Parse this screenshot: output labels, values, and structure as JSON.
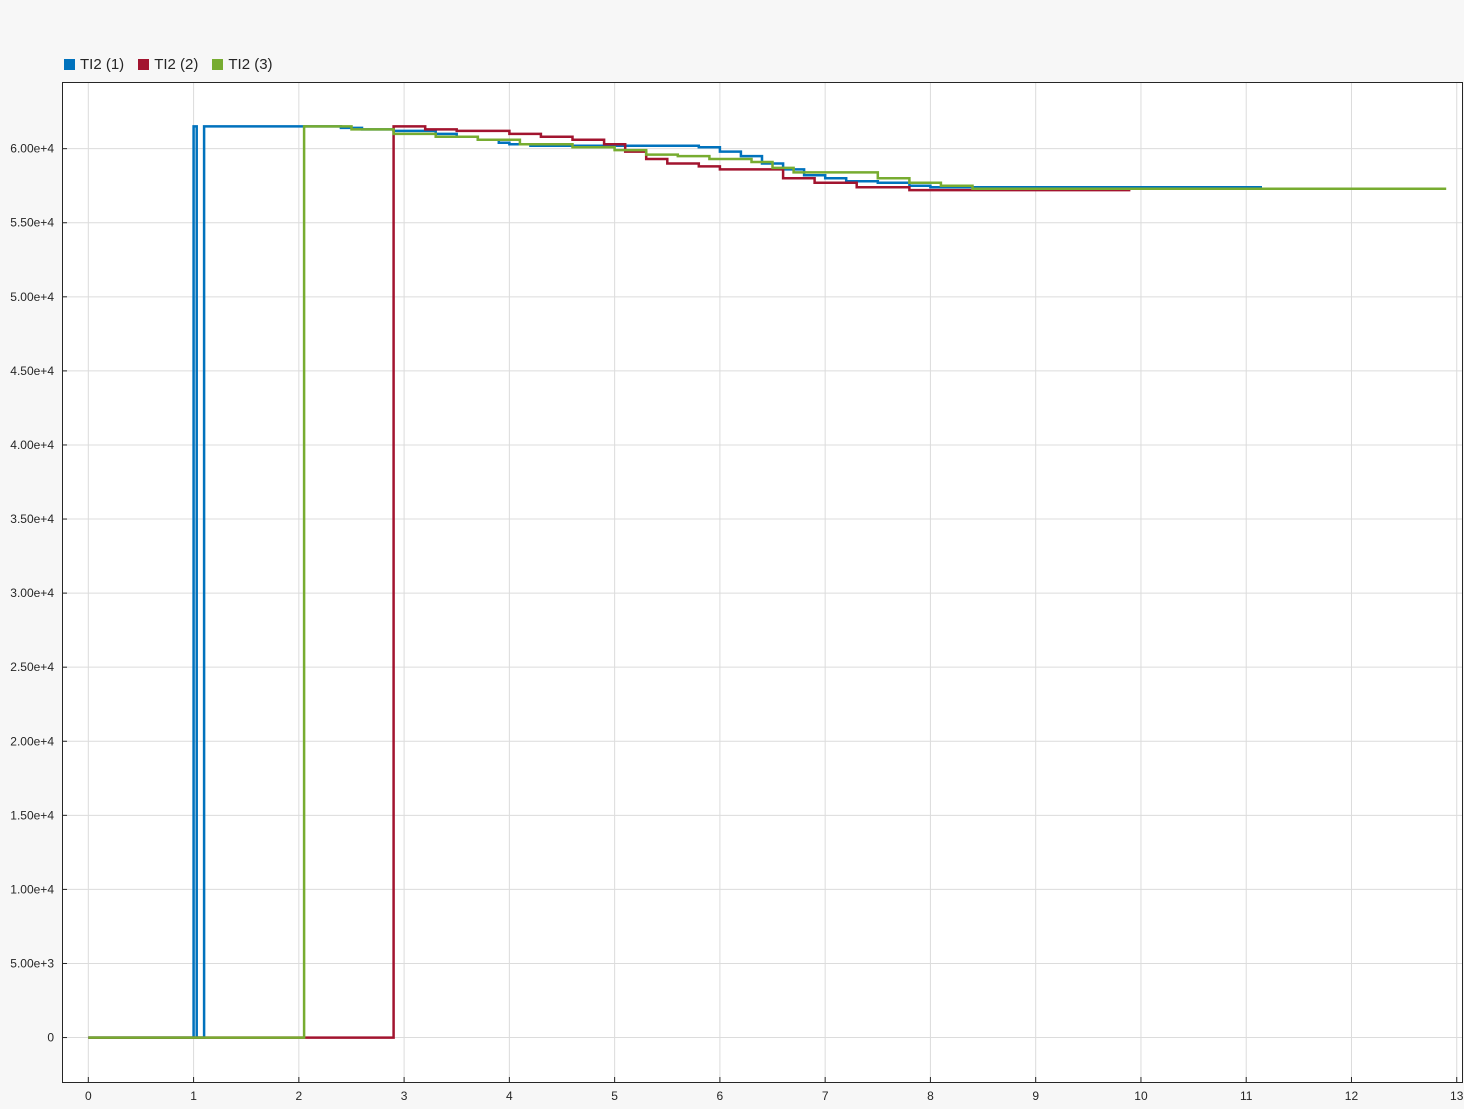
{
  "legend": {
    "items": [
      {
        "label": "TI2 (1)",
        "color": "#0072BD"
      },
      {
        "label": "TI2 (2)",
        "color": "#A2142F"
      },
      {
        "label": "TI2 (3)",
        "color": "#77AC30"
      }
    ]
  },
  "chart_data": {
    "type": "line",
    "step": true,
    "title": "",
    "xlabel": "",
    "ylabel": "",
    "xlim": [
      -0.25,
      13.05
    ],
    "ylim": [
      -3000,
      64500
    ],
    "xticks": [
      0,
      1,
      2,
      3,
      4,
      5,
      6,
      7,
      8,
      9,
      10,
      11,
      12,
      13
    ],
    "xtick_labels": [
      "0",
      "1",
      "2",
      "3",
      "4",
      "5",
      "6",
      "7",
      "8",
      "9",
      "10",
      "11",
      "12",
      "13"
    ],
    "yticks": [
      0,
      5000,
      10000,
      15000,
      20000,
      25000,
      30000,
      35000,
      40000,
      45000,
      50000,
      55000,
      60000
    ],
    "ytick_labels": [
      "0",
      "5.00e+3",
      "1.00e+4",
      "1.50e+4",
      "2.00e+4",
      "2.50e+4",
      "3.00e+4",
      "3.50e+4",
      "4.00e+4",
      "4.50e+4",
      "5.00e+4",
      "5.50e+4",
      "6.00e+4"
    ],
    "grid": true,
    "legend_position": "top-left",
    "background": "#ffffff",
    "grid_color": "#dcdcdc",
    "series": [
      {
        "name": "TI2 (1)",
        "color": "#0072BD",
        "x": [
          0,
          1.0,
          1.0,
          1.03,
          1.03,
          1.1,
          1.1,
          2.4,
          2.6,
          2.9,
          3.3,
          3.5,
          3.7,
          3.9,
          4.0,
          4.2,
          5.5,
          5.8,
          6.0,
          6.2,
          6.4,
          6.6,
          6.8,
          7.0,
          7.2,
          7.5,
          7.8,
          8.0,
          8.4,
          9.0,
          11.15
        ],
        "y": [
          0,
          0,
          61500,
          61500,
          0,
          0,
          61500,
          61400,
          61300,
          61200,
          61000,
          60800,
          60600,
          60400,
          60300,
          60200,
          60200,
          60100,
          59800,
          59500,
          59000,
          58600,
          58200,
          58000,
          57800,
          57700,
          57500,
          57400,
          57400,
          57400,
          57400
        ]
      },
      {
        "name": "TI2 (2)",
        "color": "#A2142F",
        "x": [
          0,
          2.9,
          2.9,
          3.2,
          3.5,
          4.0,
          4.3,
          4.6,
          4.9,
          5.1,
          5.3,
          5.5,
          5.8,
          6.0,
          6.4,
          6.6,
          6.9,
          7.3,
          7.8,
          8.4,
          9.9
        ],
        "y": [
          0,
          0,
          61500,
          61300,
          61200,
          61000,
          60800,
          60600,
          60300,
          59800,
          59300,
          59000,
          58800,
          58600,
          58600,
          58000,
          57700,
          57400,
          57200,
          57200,
          57200
        ]
      },
      {
        "name": "TI2 (3)",
        "color": "#77AC30",
        "x": [
          0,
          2.05,
          2.05,
          2.5,
          2.9,
          3.3,
          3.7,
          4.1,
          4.6,
          5.0,
          5.3,
          5.6,
          5.9,
          6.1,
          6.3,
          6.5,
          6.7,
          7.0,
          7.5,
          7.8,
          8.1,
          8.4,
          9.0,
          12.9
        ],
        "y": [
          0,
          0,
          61500,
          61300,
          61000,
          60800,
          60600,
          60300,
          60100,
          59900,
          59600,
          59500,
          59300,
          59300,
          59100,
          58700,
          58400,
          58400,
          58000,
          57700,
          57500,
          57300,
          57300,
          57300
        ]
      }
    ]
  }
}
